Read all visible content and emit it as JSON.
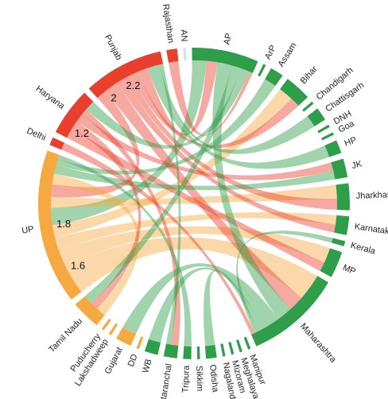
{
  "chart_data": {
    "type": "chord",
    "categories": [
      "AN",
      "AP",
      "ArP",
      "Assam",
      "Bihar",
      "Chandigarh",
      "Chattisgarh",
      "DNH",
      "Goa",
      "HP",
      "JK",
      "Jharkhand",
      "Karnataka",
      "Kerala",
      "MP",
      "Maharashtra",
      "Manipur",
      "Meghalaya",
      "Mizoram",
      "Nagaland",
      "Odisha",
      "Sikkim",
      "Tripura",
      "Uttaranchal",
      "WB",
      "DD",
      "Gujarat",
      "Lakshadweep",
      "Puducherry",
      "Tamil Nadu",
      "UP",
      "Delhi",
      "Haryana",
      "Punjab",
      "Rajasthan"
    ],
    "values": [
      1,
      25,
      1,
      5,
      10,
      1,
      5,
      1,
      1,
      5,
      7,
      10,
      7,
      2,
      10,
      36,
      1,
      1,
      1,
      1,
      4,
      1,
      3,
      5,
      5,
      1,
      6,
      1,
      1,
      11,
      58,
      3,
      18,
      30,
      4
    ],
    "colors": [
      "#cfe8d3",
      "#2e9e4a",
      "#2e9e4a",
      "#2e9e4a",
      "#2e9e4a",
      "#2e9e4a",
      "#2e9e4a",
      "#2e9e4a",
      "#2e9e4a",
      "#2e9e4a",
      "#2e9e4a",
      "#2e9e4a",
      "#2e9e4a",
      "#2e9e4a",
      "#2e9e4a",
      "#2e9e4a",
      "#2e9e4a",
      "#2e9e4a",
      "#2e9e4a",
      "#2e9e4a",
      "#2e9e4a",
      "#2e9e4a",
      "#2e9e4a",
      "#2e9e4a",
      "#2e9e4a",
      "#f7a941",
      "#f7a941",
      "#f7a941",
      "#f7a941",
      "#f7a941",
      "#f7a941",
      "#e8402c",
      "#e8402c",
      "#e8402c",
      "#e8402c"
    ],
    "links": [
      {
        "source": "UP",
        "target": "Maharashtra",
        "value": 14
      },
      {
        "source": "UP",
        "target": "MP",
        "value": 8
      },
      {
        "source": "UP",
        "target": "Karnataka",
        "value": 6
      },
      {
        "source": "UP",
        "target": "Bihar",
        "value": 6
      },
      {
        "source": "AP",
        "target": "UP",
        "value": 8
      },
      {
        "source": "UP",
        "target": "Jharkhand",
        "value": 5
      },
      {
        "source": "Punjab",
        "target": "UP",
        "value": 6
      },
      {
        "source": "UP",
        "target": "Tamil Nadu",
        "value": 5
      },
      {
        "source": "Punjab",
        "target": "Maharashtra",
        "value": 8
      },
      {
        "source": "Punjab",
        "target": "Karnataka",
        "value": 5
      },
      {
        "source": "Punjab",
        "target": "Jharkhand",
        "value": 4
      },
      {
        "source": "Punjab",
        "target": "Bihar",
        "value": 4
      },
      {
        "source": "Punjab",
        "target": "AP",
        "value": 6
      },
      {
        "source": "Haryana",
        "target": "MP",
        "value": 5
      },
      {
        "source": "Haryana",
        "target": "Tamil Nadu",
        "value": 4
      },
      {
        "source": "Haryana",
        "target": "JK",
        "value": 4
      },
      {
        "source": "Haryana",
        "target": "Uttaranchal",
        "value": 3
      },
      {
        "source": "AP",
        "target": "Maharashtra",
        "value": 8
      },
      {
        "source": "AP",
        "target": "Tamil Nadu",
        "value": 5
      },
      {
        "source": "AP",
        "target": "Haryana",
        "value": 5
      },
      {
        "source": "Maharashtra",
        "target": "Gujarat",
        "value": 5
      },
      {
        "source": "Maharashtra",
        "target": "WB",
        "value": 4
      },
      {
        "source": "Maharashtra",
        "target": "Odisha",
        "value": 3
      },
      {
        "source": "JK",
        "target": "UP",
        "value": 4
      },
      {
        "source": "HP",
        "target": "Punjab",
        "value": 4
      },
      {
        "source": "Chattisgarh",
        "target": "Punjab",
        "value": 3
      },
      {
        "source": "Kerala",
        "target": "Maharashtra",
        "value": 2
      },
      {
        "source": "Assam",
        "target": "UP",
        "value": 3
      },
      {
        "source": "Delhi",
        "target": "Maharashtra",
        "value": 2
      },
      {
        "source": "Rajasthan",
        "target": "AP",
        "value": 2
      },
      {
        "source": "Tripura",
        "target": "UP",
        "value": 2
      },
      {
        "source": "Uttaranchal",
        "target": "Punjab",
        "value": 2
      }
    ],
    "arc_ticks": [
      {
        "category": "Haryana",
        "value": 1.2
      },
      {
        "category": "Punjab",
        "value": 2.0
      },
      {
        "category": "Punjab",
        "value": 2.2
      },
      {
        "category": "UP",
        "value": 1.6
      },
      {
        "category": "UP",
        "value": 1.8
      }
    ]
  }
}
